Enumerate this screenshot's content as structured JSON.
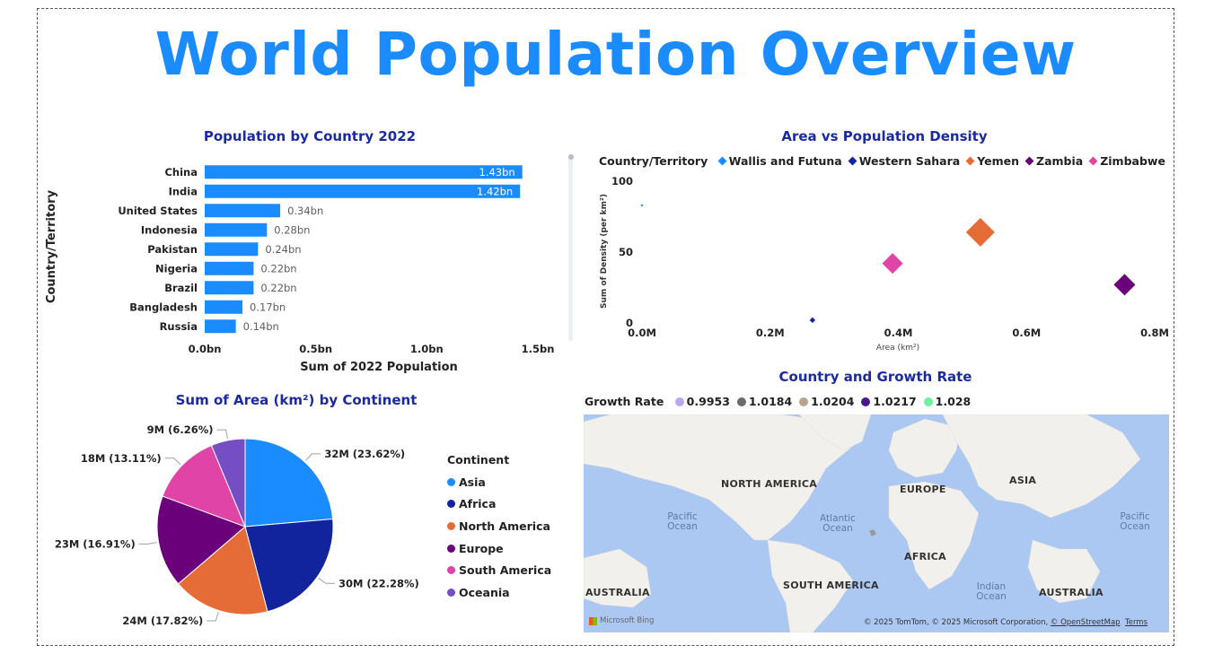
{
  "page": {
    "title": "World Population Overview"
  },
  "bar_visual": {
    "title": "Population by Country 2022"
  },
  "scatter_visual": {
    "title": "Area vs Population Density",
    "legend_label": "Country/Territory",
    "legend": [
      {
        "name": "Wallis and Futuna",
        "color": "#1a8cff"
      },
      {
        "name": "Western Sahara",
        "color": "#12239e"
      },
      {
        "name": "Yemen",
        "color": "#e66c37"
      },
      {
        "name": "Zambia",
        "color": "#6b007b"
      },
      {
        "name": "Zimbabwe",
        "color": "#e044a7"
      }
    ]
  },
  "pie_visual": {
    "title": "Sum of Area (km²) by Continent",
    "legend_title": "Continent"
  },
  "map_visual": {
    "title": "Country and Growth Rate",
    "legend_label": "Growth Rate",
    "legend": [
      {
        "name": "0.9953",
        "color": "#b9a7f0"
      },
      {
        "name": "1.0184",
        "color": "#6b6b6b"
      },
      {
        "name": "1.0204",
        "color": "#b8a48f"
      },
      {
        "name": "1.0217",
        "color": "#4b1a8a"
      },
      {
        "name": "1.028",
        "color": "#6ff2a0"
      }
    ],
    "continents": [
      "NORTH AMERICA",
      "EUROPE",
      "ASIA",
      "AFRICA",
      "SOUTH AMERICA",
      "AUSTRALIA",
      "AUSTRALIA"
    ],
    "oceans": [
      "Pacific Ocean",
      "Atlantic Ocean",
      "Indian Ocean",
      "Pacific Ocean"
    ],
    "bing": "Microsoft Bing",
    "credit": {
      "main": "© 2025 TomTom, © 2025 Microsoft Corporation, ",
      "osm": "© OpenStreetMap",
      "terms": "Terms"
    }
  },
  "chart_data": [
    {
      "type": "bar",
      "orientation": "horizontal",
      "title": "Population by Country 2022",
      "xlabel": "Sum of 2022 Population",
      "ylabel": "Country/Territory",
      "categories": [
        "China",
        "India",
        "United States",
        "Indonesia",
        "Pakistan",
        "Nigeria",
        "Brazil",
        "Bangladesh",
        "Russia"
      ],
      "values": [
        1.43,
        1.42,
        0.34,
        0.28,
        0.24,
        0.22,
        0.22,
        0.17,
        0.14
      ],
      "data_labels": [
        "1.43bn",
        "1.42bn",
        "0.34bn",
        "0.28bn",
        "0.24bn",
        "0.22bn",
        "0.22bn",
        "0.17bn",
        "0.14bn"
      ],
      "xlim": [
        0,
        1.5
      ],
      "xticks": [
        0,
        0.5,
        1.0,
        1.5
      ],
      "xtick_labels": [
        "0.0bn",
        "0.5bn",
        "1.0bn",
        "1.5bn"
      ],
      "color": "#1a8cff"
    },
    {
      "type": "scatter",
      "title": "Area vs Population Density",
      "xlabel": "Area (km²)",
      "ylabel": "Sum of Density (per km²)",
      "xlim": [
        0,
        0.8
      ],
      "ylim": [
        0,
        100
      ],
      "xticks": [
        0,
        0.2,
        0.4,
        0.6,
        0.8
      ],
      "xtick_labels": [
        "0.0M",
        "0.2M",
        "0.4M",
        "0.6M",
        "0.8M"
      ],
      "yticks": [
        0,
        50,
        100
      ],
      "ytick_labels": [
        "0",
        "50",
        "100"
      ],
      "series": [
        {
          "name": "Wallis and Futuna",
          "x": 0.0001,
          "y": 83,
          "size": 0.03,
          "color": "#1a8cff"
        },
        {
          "name": "Western Sahara",
          "x": 0.266,
          "y": 2,
          "size": 0.2,
          "color": "#12239e"
        },
        {
          "name": "Yemen",
          "x": 0.528,
          "y": 64,
          "size": 1.0,
          "color": "#e66c37"
        },
        {
          "name": "Zambia",
          "x": 0.753,
          "y": 27,
          "size": 0.75,
          "color": "#6b007b"
        },
        {
          "name": "Zimbabwe",
          "x": 0.391,
          "y": 42,
          "size": 0.72,
          "color": "#e044a7"
        }
      ]
    },
    {
      "type": "pie",
      "title": "Sum of Area (km²) by Continent",
      "legend_title": "Continent",
      "categories": [
        "Asia",
        "Africa",
        "North America",
        "Europe",
        "South America",
        "Oceania"
      ],
      "values": [
        23.62,
        22.28,
        17.82,
        16.91,
        13.11,
        6.26
      ],
      "data_labels": [
        "32M (23.62%)",
        "30M (22.28%)",
        "24M (17.82%)",
        "23M (16.91%)",
        "18M (13.11%)",
        "9M (6.26%)"
      ],
      "colors": [
        "#1a8cff",
        "#12239e",
        "#e66c37",
        "#6b007b",
        "#e044a7",
        "#744ec2"
      ]
    }
  ]
}
